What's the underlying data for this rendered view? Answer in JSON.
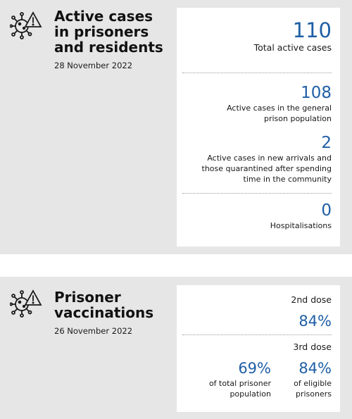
{
  "cases": {
    "title_lines": [
      "Active cases",
      "in prisoners",
      "and residents"
    ],
    "date": "28 November 2022",
    "total": {
      "value": "110",
      "label": "Total active cases"
    },
    "general": {
      "value": "108",
      "label_lines": [
        "Active cases in the general",
        "prison population"
      ]
    },
    "new_arrivals": {
      "value": "2",
      "label_lines": [
        "Active cases in new arrivals and",
        "those quarantined after spending",
        "time in the community"
      ]
    },
    "hospitalisations": {
      "value": "0",
      "label": "Hospitalisations"
    }
  },
  "vaccinations": {
    "title_lines": [
      "Prisoner",
      "vaccinations"
    ],
    "date": "26 November 2022",
    "second_dose": {
      "label": "2nd dose",
      "value": "84%"
    },
    "third_dose": {
      "label": "3rd dose",
      "total": {
        "value": "69%",
        "label_lines": [
          "of total prisoner",
          "population"
        ]
      },
      "eligible": {
        "value": "84%",
        "label_lines": [
          "of eligible",
          "prisoners"
        ]
      }
    }
  },
  "icons": [
    "virus-warning-icon"
  ],
  "colors": {
    "accent": "#1f5fa5",
    "panel": "#e6e6e6",
    "card": "#ffffff"
  }
}
